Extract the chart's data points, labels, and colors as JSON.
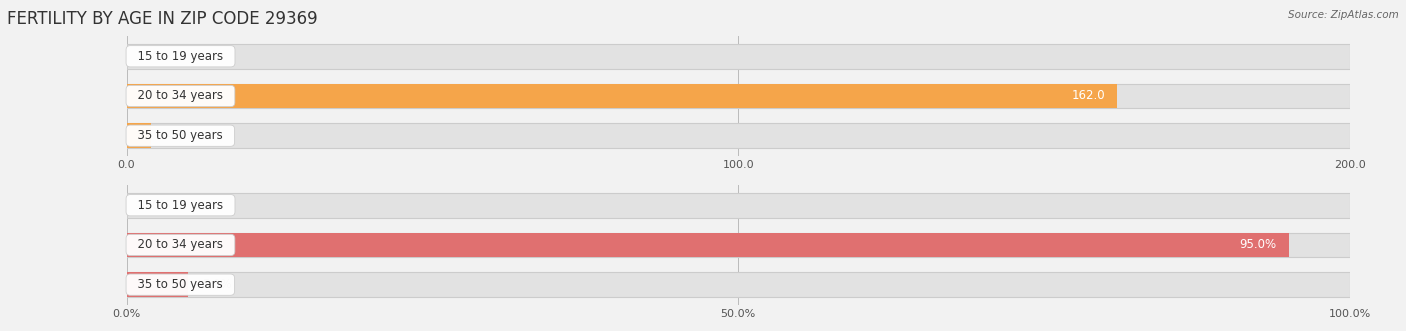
{
  "title": "FERTILITY BY AGE IN ZIP CODE 29369",
  "source": "Source: ZipAtlas.com",
  "top_chart": {
    "categories": [
      "15 to 19 years",
      "20 to 34 years",
      "35 to 50 years"
    ],
    "values": [
      0.0,
      162.0,
      4.0
    ],
    "xlim": [
      0,
      200
    ],
    "xticks": [
      0.0,
      100.0,
      200.0
    ],
    "bar_color": "#F5A54A",
    "bar_color_light": "#F5CFA0",
    "label_color_inside": "#FFFFFF",
    "label_color_outside": "#666666",
    "value_threshold": 150
  },
  "bottom_chart": {
    "categories": [
      "15 to 19 years",
      "20 to 34 years",
      "35 to 50 years"
    ],
    "values": [
      0.0,
      95.0,
      5.0
    ],
    "xlim": [
      0,
      100
    ],
    "xticks": [
      0.0,
      50.0,
      100.0
    ],
    "xtick_labels": [
      "0.0%",
      "50.0%",
      "100.0%"
    ],
    "bar_color": "#E07070",
    "bar_color_light": "#F0B0A0",
    "label_color_inside": "#FFFFFF",
    "label_color_outside": "#666666",
    "value_threshold": 80
  },
  "bg_color": "#F2F2F2",
  "bar_bg_color": "#E2E2E2",
  "bar_height": 0.62,
  "label_fontsize": 8.5,
  "tick_fontsize": 8,
  "title_fontsize": 12,
  "source_fontsize": 7.5
}
